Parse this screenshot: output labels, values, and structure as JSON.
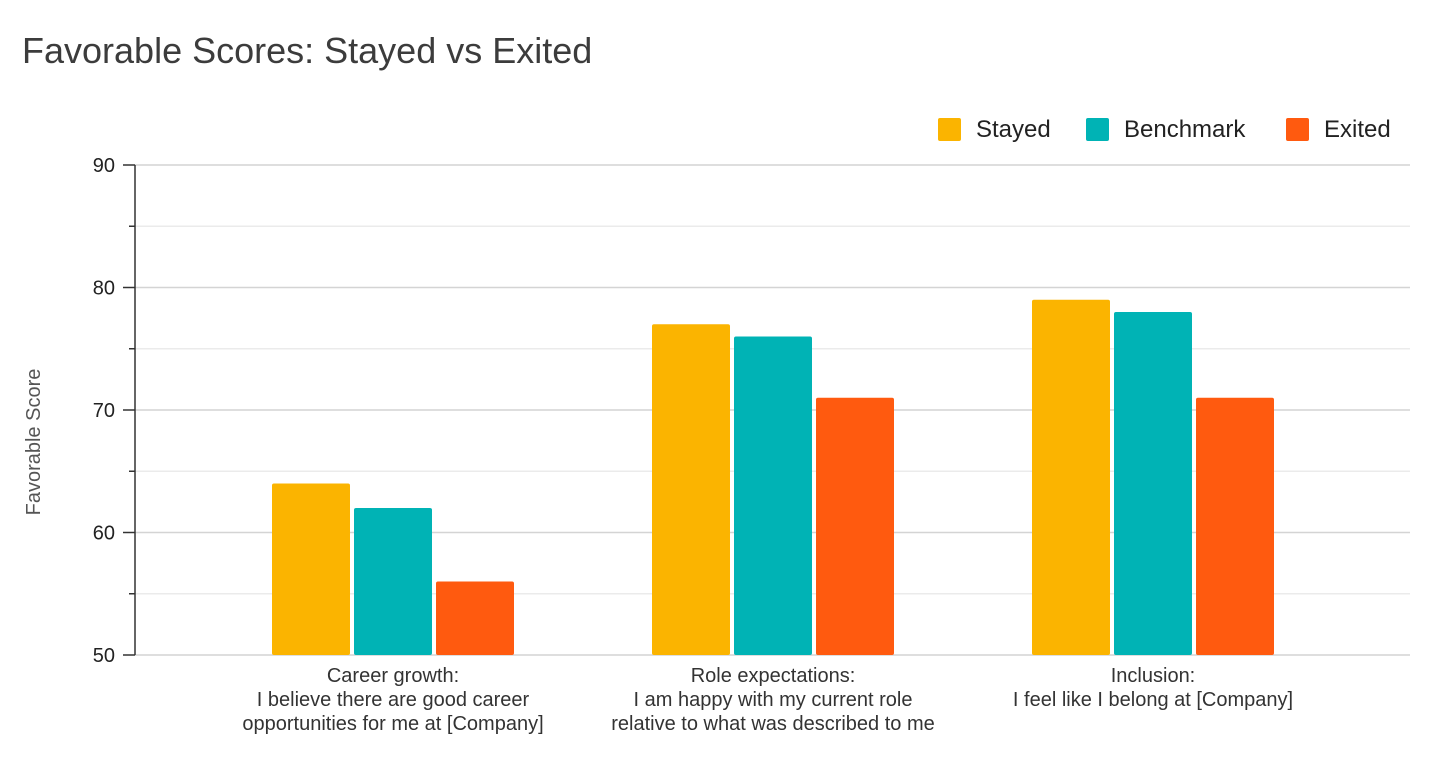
{
  "chart_data": {
    "type": "bar",
    "title": "Favorable Scores: Stayed vs Exited",
    "xlabel": "",
    "ylabel": "Favorable Score",
    "ylim": [
      50,
      90
    ],
    "yticks": [
      50,
      60,
      70,
      80,
      90
    ],
    "grid": true,
    "legend_position": "top-right",
    "categories": [
      [
        "Career growth:",
        "I believe there are good career",
        "opportunities for me at [Company]"
      ],
      [
        "Role expectations:",
        "I am happy with my current role",
        "relative to what was described to me"
      ],
      [
        "Inclusion:",
        "I feel like I belong at [Company]"
      ]
    ],
    "series": [
      {
        "name": "Stayed",
        "color": "#FBB400",
        "values": [
          64,
          77,
          79
        ]
      },
      {
        "name": "Benchmark",
        "color": "#00B3B5",
        "values": [
          62,
          76,
          78
        ]
      },
      {
        "name": "Exited",
        "color": "#FF5A0F",
        "values": [
          56,
          71,
          71
        ]
      }
    ]
  }
}
